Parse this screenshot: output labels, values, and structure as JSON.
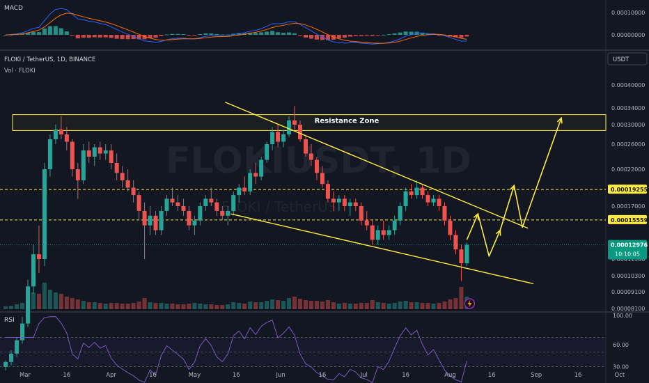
{
  "panes": {
    "macd": {
      "label": "MACD",
      "ticks": [
        {
          "label": "0.00010000",
          "v": 0.0001
        },
        {
          "label": "0.00000000",
          "v": 0
        }
      ]
    },
    "price": {
      "symbol_line": "FLOKI / TetherUS, 1D, BINANCE",
      "volume_label": "Vol · FLOKI",
      "currency": "USDT",
      "watermark": "FLOKIUSDT, 1D",
      "watermark_sub": "FLOKI / TetherUS",
      "resistance_label": "Resistance Zone"
    },
    "rsi": {
      "label": "RSI",
      "ticks": [
        {
          "label": "100.00",
          "v": 100
        },
        {
          "label": "60.00",
          "v": 60
        },
        {
          "label": "30.00",
          "v": 30
        }
      ]
    }
  },
  "chart_data": {
    "type": "candlestick",
    "instrument": "FLOKIUSDT",
    "timeframe": "1D",
    "exchange": "BINANCE",
    "price_axis_ticks": [
      0.0004,
      0.00034,
      0.0003,
      0.00026,
      0.00022,
      0.00017,
      0.000115,
      0.000103,
      9.1e-05,
      8.1e-05
    ],
    "price_axis_labels": [
      "0.00040000",
      "0.00034000",
      "0.00030000",
      "0.00026000",
      "0.00022000",
      "0.00017000",
      "0.00011500",
      "0.00010300",
      "0.00009100",
      "0.00008100"
    ],
    "x_labels": [
      "Mar",
      "16",
      "Apr",
      "16",
      "May",
      "16",
      "Jun",
      "16",
      "Jul",
      "16",
      "Aug",
      "16",
      "Sep",
      "16",
      "Oct"
    ],
    "x_label_dates": [
      "2024-03-01",
      "2024-03-16",
      "2024-04-01",
      "2024-04-16",
      "2024-05-01",
      "2024-05-16",
      "2024-06-01",
      "2024-06-16",
      "2024-07-01",
      "2024-07-16",
      "2024-08-01",
      "2024-08-16",
      "2024-09-01",
      "2024-09-16",
      "2024-10-01"
    ],
    "price_levels": [
      {
        "label": "0.00019255",
        "value": 0.00019255,
        "color": "#ffeb3b",
        "style": "dashed"
      },
      {
        "label": "0.00015559",
        "value": 0.00015559,
        "color": "#ffeb3b",
        "style": "dashed"
      },
      {
        "label": "0.00012976",
        "value": 0.00012976,
        "color": "#089981",
        "style": "dotted",
        "countdown": "10:10:05",
        "current": true
      }
    ],
    "resistance_zone": {
      "low": 0.000288,
      "high": 0.000324,
      "label": "Resistance Zone",
      "color": "#ffeb3b"
    },
    "trendlines": [
      {
        "name": "upper",
        "from": {
          "date": "2024-05-12",
          "price": 0.000355
        },
        "to": {
          "date": "2024-08-29",
          "price": 0.000147
        }
      },
      {
        "name": "lower",
        "from": {
          "date": "2024-05-14",
          "price": 0.000162
        },
        "to": {
          "date": "2024-08-31",
          "price": 9.7e-05
        }
      }
    ],
    "projection_path": [
      {
        "date": "2024-08-07",
        "price": 0.000135
      },
      {
        "date": "2024-08-11",
        "price": 0.000162
      },
      {
        "date": "2024-08-15",
        "price": 0.000118
      },
      {
        "date": "2024-08-19",
        "price": 0.000145
      },
      {
        "date": "2024-08-24",
        "price": 0.000198
      },
      {
        "date": "2024-08-27",
        "price": 0.000148
      },
      {
        "date": "2024-09-10",
        "price": 0.000316
      }
    ],
    "colors": {
      "up": "#26a69a",
      "down": "#ef5350",
      "line": "#ffeb3b",
      "projection": "#ffeb3b",
      "macd": "#2962ff",
      "signal": "#ff6d00",
      "rsi": "#7e57c2"
    },
    "candles": [
      {
        "date": "2024-02-23",
        "o": 4.6e-05,
        "h": 5e-05,
        "l": 4.4e-05,
        "c": 4.9e-05,
        "v": 0.4
      },
      {
        "date": "2024-02-25",
        "o": 4.9e-05,
        "h": 5.6e-05,
        "l": 4.7e-05,
        "c": 5.4e-05,
        "v": 0.5
      },
      {
        "date": "2024-02-27",
        "o": 5.4e-05,
        "h": 6.4e-05,
        "l": 5.2e-05,
        "c": 6.2e-05,
        "v": 0.7
      },
      {
        "date": "2024-02-29",
        "o": 6.2e-05,
        "h": 7.6e-05,
        "l": 6e-05,
        "c": 7.2e-05,
        "v": 0.9
      },
      {
        "date": "2024-03-02",
        "o": 7.2e-05,
        "h": 0.0001,
        "l": 7e-05,
        "c": 9.5e-05,
        "v": 1.6
      },
      {
        "date": "2024-03-04",
        "o": 9.5e-05,
        "h": 0.00013,
        "l": 9e-05,
        "c": 0.00012,
        "v": 2.4
      },
      {
        "date": "2024-03-06",
        "o": 0.00012,
        "h": 0.00015,
        "l": 0.000105,
        "c": 0.000115,
        "v": 2.2
      },
      {
        "date": "2024-03-08",
        "o": 0.000115,
        "h": 0.00023,
        "l": 0.00011,
        "c": 0.00022,
        "v": 3.8
      },
      {
        "date": "2024-03-10",
        "o": 0.00022,
        "h": 0.00028,
        "l": 0.00021,
        "c": 0.00027,
        "v": 2.8
      },
      {
        "date": "2024-03-12",
        "o": 0.00027,
        "h": 0.0003,
        "l": 0.00026,
        "c": 0.00029,
        "v": 2.4
      },
      {
        "date": "2024-03-14",
        "o": 0.00029,
        "h": 0.00032,
        "l": 0.00027,
        "c": 0.00028,
        "v": 2.2
      },
      {
        "date": "2024-03-16",
        "o": 0.00028,
        "h": 0.000295,
        "l": 0.00025,
        "c": 0.000265,
        "v": 1.8
      },
      {
        "date": "2024-03-18",
        "o": 0.000265,
        "h": 0.00027,
        "l": 0.00021,
        "c": 0.00022,
        "v": 1.6
      },
      {
        "date": "2024-03-20",
        "o": 0.00022,
        "h": 0.00023,
        "l": 0.00018,
        "c": 0.000205,
        "v": 1.4
      },
      {
        "date": "2024-03-22",
        "o": 0.000205,
        "h": 0.00026,
        "l": 0.0002,
        "c": 0.00025,
        "v": 1.2
      },
      {
        "date": "2024-03-24",
        "o": 0.00025,
        "h": 0.000265,
        "l": 0.00023,
        "c": 0.00024,
        "v": 1.0
      },
      {
        "date": "2024-03-26",
        "o": 0.00024,
        "h": 0.00026,
        "l": 0.000225,
        "c": 0.000255,
        "v": 1.0
      },
      {
        "date": "2024-03-28",
        "o": 0.000255,
        "h": 0.000265,
        "l": 0.000235,
        "c": 0.000245,
        "v": 0.9
      },
      {
        "date": "2024-03-30",
        "o": 0.000245,
        "h": 0.00026,
        "l": 0.000235,
        "c": 0.00025,
        "v": 0.8
      },
      {
        "date": "2024-04-01",
        "o": 0.00025,
        "h": 0.00026,
        "l": 0.00022,
        "c": 0.00023,
        "v": 0.9
      },
      {
        "date": "2024-04-03",
        "o": 0.00023,
        "h": 0.000245,
        "l": 0.000205,
        "c": 0.000215,
        "v": 0.9
      },
      {
        "date": "2024-04-05",
        "o": 0.000215,
        "h": 0.000225,
        "l": 0.000195,
        "c": 0.000205,
        "v": 0.8
      },
      {
        "date": "2024-04-07",
        "o": 0.000205,
        "h": 0.00022,
        "l": 0.00019,
        "c": 0.000195,
        "v": 0.8
      },
      {
        "date": "2024-04-09",
        "o": 0.000195,
        "h": 0.000205,
        "l": 0.000175,
        "c": 0.000185,
        "v": 0.9
      },
      {
        "date": "2024-04-11",
        "o": 0.000185,
        "h": 0.00019,
        "l": 0.000155,
        "c": 0.000165,
        "v": 1.1
      },
      {
        "date": "2024-04-13",
        "o": 0.000165,
        "h": 0.000175,
        "l": 0.000115,
        "c": 0.00015,
        "v": 1.6
      },
      {
        "date": "2024-04-15",
        "o": 0.00015,
        "h": 0.00017,
        "l": 0.00014,
        "c": 0.00016,
        "v": 1.0
      },
      {
        "date": "2024-04-17",
        "o": 0.00016,
        "h": 0.000165,
        "l": 0.00014,
        "c": 0.000145,
        "v": 0.9
      },
      {
        "date": "2024-04-19",
        "o": 0.000145,
        "h": 0.00017,
        "l": 0.00014,
        "c": 0.000165,
        "v": 0.9
      },
      {
        "date": "2024-04-21",
        "o": 0.000165,
        "h": 0.000185,
        "l": 0.00016,
        "c": 0.00018,
        "v": 0.8
      },
      {
        "date": "2024-04-23",
        "o": 0.00018,
        "h": 0.000195,
        "l": 0.00017,
        "c": 0.000175,
        "v": 0.8
      },
      {
        "date": "2024-04-25",
        "o": 0.000175,
        "h": 0.000185,
        "l": 0.000165,
        "c": 0.00017,
        "v": 0.7
      },
      {
        "date": "2024-04-27",
        "o": 0.00017,
        "h": 0.00018,
        "l": 0.00016,
        "c": 0.000165,
        "v": 0.7
      },
      {
        "date": "2024-04-29",
        "o": 0.000165,
        "h": 0.00017,
        "l": 0.000145,
        "c": 0.00015,
        "v": 0.8
      },
      {
        "date": "2024-05-01",
        "o": 0.00015,
        "h": 0.00016,
        "l": 0.00014,
        "c": 0.000155,
        "v": 0.9
      },
      {
        "date": "2024-05-03",
        "o": 0.000155,
        "h": 0.000175,
        "l": 0.00015,
        "c": 0.00017,
        "v": 0.8
      },
      {
        "date": "2024-05-05",
        "o": 0.00017,
        "h": 0.000185,
        "l": 0.000165,
        "c": 0.00018,
        "v": 0.7
      },
      {
        "date": "2024-05-07",
        "o": 0.00018,
        "h": 0.000195,
        "l": 0.00017,
        "c": 0.000175,
        "v": 0.7
      },
      {
        "date": "2024-05-09",
        "o": 0.000175,
        "h": 0.00018,
        "l": 0.00016,
        "c": 0.000165,
        "v": 0.6
      },
      {
        "date": "2024-05-11",
        "o": 0.000165,
        "h": 0.00017,
        "l": 0.000155,
        "c": 0.00016,
        "v": 0.6
      },
      {
        "date": "2024-05-13",
        "o": 0.00016,
        "h": 0.00017,
        "l": 0.00015,
        "c": 0.000165,
        "v": 0.7
      },
      {
        "date": "2024-05-15",
        "o": 0.000165,
        "h": 0.00019,
        "l": 0.00016,
        "c": 0.000185,
        "v": 1.0
      },
      {
        "date": "2024-05-17",
        "o": 0.000185,
        "h": 0.0002,
        "l": 0.000175,
        "c": 0.000195,
        "v": 0.9
      },
      {
        "date": "2024-05-19",
        "o": 0.000195,
        "h": 0.00021,
        "l": 0.000185,
        "c": 0.00019,
        "v": 0.8
      },
      {
        "date": "2024-05-21",
        "o": 0.00019,
        "h": 0.00022,
        "l": 0.000185,
        "c": 0.000215,
        "v": 1.1
      },
      {
        "date": "2024-05-23",
        "o": 0.000215,
        "h": 0.00023,
        "l": 0.0002,
        "c": 0.00021,
        "v": 1.0
      },
      {
        "date": "2024-05-25",
        "o": 0.00021,
        "h": 0.00024,
        "l": 0.000205,
        "c": 0.000235,
        "v": 1.0
      },
      {
        "date": "2024-05-27",
        "o": 0.000235,
        "h": 0.000265,
        "l": 0.00023,
        "c": 0.00026,
        "v": 1.2
      },
      {
        "date": "2024-05-29",
        "o": 0.00026,
        "h": 0.000295,
        "l": 0.00025,
        "c": 0.000285,
        "v": 1.4
      },
      {
        "date": "2024-05-31",
        "o": 0.000285,
        "h": 0.0003,
        "l": 0.000255,
        "c": 0.000265,
        "v": 1.3
      },
      {
        "date": "2024-06-02",
        "o": 0.000265,
        "h": 0.00029,
        "l": 0.000255,
        "c": 0.00028,
        "v": 1.2
      },
      {
        "date": "2024-06-04",
        "o": 0.00028,
        "h": 0.00032,
        "l": 0.000275,
        "c": 0.00031,
        "v": 1.6
      },
      {
        "date": "2024-06-06",
        "o": 0.00031,
        "h": 0.000345,
        "l": 0.00029,
        "c": 0.0003,
        "v": 1.8
      },
      {
        "date": "2024-06-08",
        "o": 0.0003,
        "h": 0.00031,
        "l": 0.000265,
        "c": 0.00027,
        "v": 1.5
      },
      {
        "date": "2024-06-10",
        "o": 0.00027,
        "h": 0.00028,
        "l": 0.00024,
        "c": 0.000245,
        "v": 1.3
      },
      {
        "date": "2024-06-12",
        "o": 0.000245,
        "h": 0.00026,
        "l": 0.000225,
        "c": 0.000235,
        "v": 1.2
      },
      {
        "date": "2024-06-14",
        "o": 0.000235,
        "h": 0.00024,
        "l": 0.000205,
        "c": 0.000215,
        "v": 1.2
      },
      {
        "date": "2024-06-16",
        "o": 0.000215,
        "h": 0.000225,
        "l": 0.000195,
        "c": 0.0002,
        "v": 1.1
      },
      {
        "date": "2024-06-18",
        "o": 0.0002,
        "h": 0.000205,
        "l": 0.000175,
        "c": 0.00018,
        "v": 1.3
      },
      {
        "date": "2024-06-20",
        "o": 0.00018,
        "h": 0.00019,
        "l": 0.000165,
        "c": 0.000175,
        "v": 1.0
      },
      {
        "date": "2024-06-22",
        "o": 0.000175,
        "h": 0.000185,
        "l": 0.000165,
        "c": 0.00018,
        "v": 0.8
      },
      {
        "date": "2024-06-24",
        "o": 0.00018,
        "h": 0.000185,
        "l": 0.000165,
        "c": 0.00017,
        "v": 0.9
      },
      {
        "date": "2024-06-26",
        "o": 0.00017,
        "h": 0.00018,
        "l": 0.00016,
        "c": 0.000175,
        "v": 0.8
      },
      {
        "date": "2024-06-28",
        "o": 0.000175,
        "h": 0.00018,
        "l": 0.000165,
        "c": 0.00017,
        "v": 0.8
      },
      {
        "date": "2024-06-30",
        "o": 0.00017,
        "h": 0.000175,
        "l": 0.00015,
        "c": 0.000155,
        "v": 0.9
      },
      {
        "date": "2024-07-02",
        "o": 0.000155,
        "h": 0.000165,
        "l": 0.000145,
        "c": 0.00015,
        "v": 0.9
      },
      {
        "date": "2024-07-04",
        "o": 0.00015,
        "h": 0.000155,
        "l": 0.00013,
        "c": 0.000135,
        "v": 1.3
      },
      {
        "date": "2024-07-06",
        "o": 0.000135,
        "h": 0.00015,
        "l": 0.00013,
        "c": 0.000145,
        "v": 1.0
      },
      {
        "date": "2024-07-08",
        "o": 0.000145,
        "h": 0.000155,
        "l": 0.000135,
        "c": 0.00014,
        "v": 0.9
      },
      {
        "date": "2024-07-10",
        "o": 0.00014,
        "h": 0.00015,
        "l": 0.000135,
        "c": 0.000145,
        "v": 0.8
      },
      {
        "date": "2024-07-12",
        "o": 0.000145,
        "h": 0.00016,
        "l": 0.00014,
        "c": 0.000155,
        "v": 0.9
      },
      {
        "date": "2024-07-14",
        "o": 0.000155,
        "h": 0.000175,
        "l": 0.00015,
        "c": 0.00017,
        "v": 1.1
      },
      {
        "date": "2024-07-16",
        "o": 0.00017,
        "h": 0.000195,
        "l": 0.000165,
        "c": 0.00019,
        "v": 1.2
      },
      {
        "date": "2024-07-18",
        "o": 0.00019,
        "h": 0.0002,
        "l": 0.00018,
        "c": 0.000185,
        "v": 1.0
      },
      {
        "date": "2024-07-20",
        "o": 0.000185,
        "h": 0.000205,
        "l": 0.00018,
        "c": 0.000195,
        "v": 1.0
      },
      {
        "date": "2024-07-22",
        "o": 0.000195,
        "h": 0.0002,
        "l": 0.00018,
        "c": 0.000185,
        "v": 0.9
      },
      {
        "date": "2024-07-24",
        "o": 0.000185,
        "h": 0.00019,
        "l": 0.00017,
        "c": 0.000175,
        "v": 0.9
      },
      {
        "date": "2024-07-26",
        "o": 0.000175,
        "h": 0.000185,
        "l": 0.00017,
        "c": 0.00018,
        "v": 0.8
      },
      {
        "date": "2024-07-28",
        "o": 0.00018,
        "h": 0.000185,
        "l": 0.000165,
        "c": 0.00017,
        "v": 0.9
      },
      {
        "date": "2024-07-30",
        "o": 0.00017,
        "h": 0.000175,
        "l": 0.00015,
        "c": 0.000155,
        "v": 1.1
      },
      {
        "date": "2024-08-01",
        "o": 0.000155,
        "h": 0.00016,
        "l": 0.000135,
        "c": 0.00014,
        "v": 1.4
      },
      {
        "date": "2024-08-03",
        "o": 0.00014,
        "h": 0.000145,
        "l": 0.00012,
        "c": 0.000125,
        "v": 1.6
      },
      {
        "date": "2024-08-05",
        "o": 0.000125,
        "h": 0.00013,
        "l": 9.9e-05,
        "c": 0.000112,
        "v": 3.2
      },
      {
        "date": "2024-08-07",
        "o": 0.000112,
        "h": 0.000132,
        "l": 0.00011,
        "c": 0.0001298,
        "v": 1.8
      }
    ]
  }
}
